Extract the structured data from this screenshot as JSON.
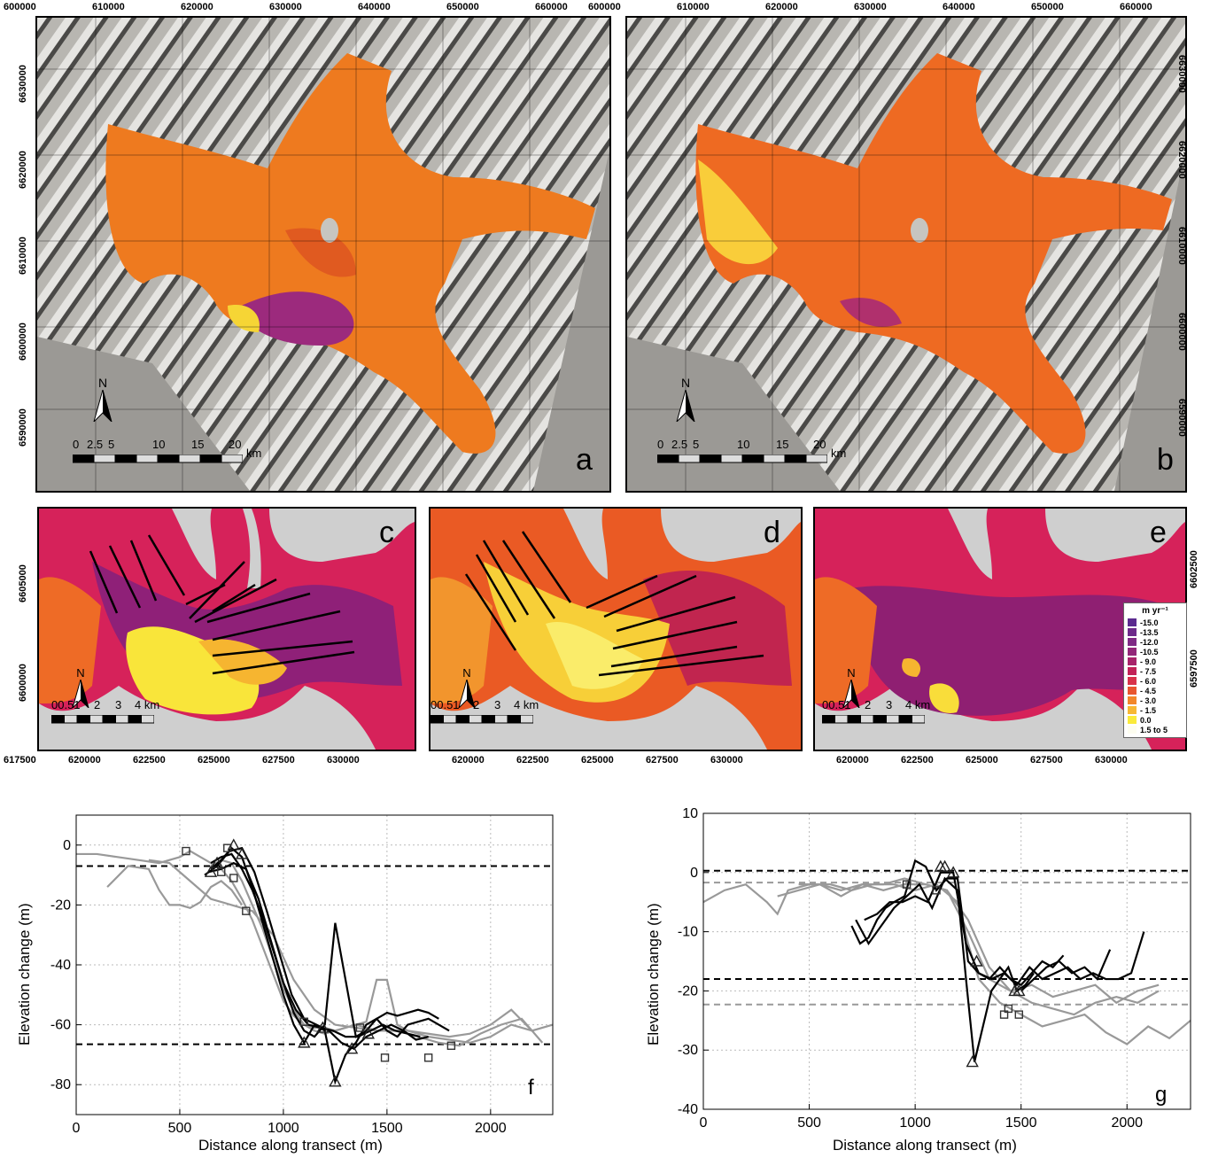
{
  "figure": {
    "panels": {
      "a": {
        "letter": "a"
      },
      "b": {
        "letter": "b"
      },
      "c": {
        "letter": "c"
      },
      "d": {
        "letter": "d"
      },
      "e": {
        "letter": "e"
      },
      "f": {
        "letter": "f"
      },
      "g": {
        "letter": "g"
      }
    },
    "top_easting_ticks": [
      "600000",
      "610000",
      "620000",
      "630000",
      "640000",
      "650000",
      "660000"
    ],
    "top_northing_ticks": [
      "6630000",
      "6620000",
      "6610000",
      "6600000",
      "6590000"
    ],
    "mid_easting_ticks_c": [
      "617500",
      "620000",
      "622500",
      "625000",
      "627500",
      "630000"
    ],
    "mid_easting_ticks_de": [
      "620000",
      "622500",
      "625000",
      "627500",
      "630000"
    ],
    "mid_northing_left": [
      "6605000",
      "6600000"
    ],
    "mid_northing_right": [
      "6602500",
      "6597500"
    ],
    "north_arrow": "N",
    "scale_large": {
      "labels": [
        "0",
        "2.5",
        "5",
        "10",
        "15",
        "20"
      ],
      "unit": "km"
    },
    "scale_small": {
      "labels": [
        "00.51",
        "2",
        "3",
        "4 km"
      ]
    },
    "legend": {
      "title": "m yr⁻¹",
      "entries": [
        {
          "label": "-15.0",
          "color": "#5b2a8f"
        },
        {
          "label": "-13.5",
          "color": "#6d2a8a"
        },
        {
          "label": "-12.0",
          "color": "#7f2a85"
        },
        {
          "label": "-10.5",
          "color": "#932779"
        },
        {
          "label": "- 9.0",
          "color": "#a8236a"
        },
        {
          "label": "- 7.5",
          "color": "#c22257"
        },
        {
          "label": "- 6.0",
          "color": "#d8324a"
        },
        {
          "label": "- 4.5",
          "color": "#e8562f"
        },
        {
          "label": "- 3.0",
          "color": "#f2872a"
        },
        {
          "label": "- 1.5",
          "color": "#f7b833"
        },
        {
          "label": "0.0",
          "color": "#faea3a"
        },
        {
          "label": "1.5 to 5",
          "color": "#fdfdf0"
        }
      ]
    }
  },
  "chart_data": [
    {
      "panel": "f",
      "type": "line",
      "xlabel": "Distance along transect (m)",
      "ylabel": "Elevation change (m)",
      "xlim": [
        0,
        2300
      ],
      "ylim": [
        -90,
        10
      ],
      "xticks": [
        0,
        500,
        1000,
        1500,
        2000
      ],
      "yticks": [
        0,
        -20,
        -40,
        -60,
        -80
      ],
      "grid": true,
      "reference_lines": [
        {
          "y": -7,
          "color": "#000000"
        },
        {
          "y": -66.5,
          "color": "#000000"
        }
      ],
      "series": [
        {
          "color": "#999999",
          "x": [
            0,
            100,
            200,
            300,
            400,
            500,
            550,
            600,
            650,
            700,
            750,
            800,
            850,
            900,
            950,
            1000,
            1050,
            1100,
            1150,
            1200,
            1250,
            1300,
            1350,
            1400,
            1450,
            1500,
            1600,
            1700,
            1800,
            1900,
            2000,
            2100,
            2200,
            2300
          ],
          "y": [
            -3,
            -3,
            -4,
            -5,
            -6,
            -4,
            -2,
            -4,
            -6,
            -8,
            -12,
            -18,
            -25,
            -34,
            -43,
            -52,
            -57,
            -60,
            -61,
            -61,
            -62,
            -61,
            -60,
            -61,
            -62,
            -62,
            -62,
            -63,
            -64,
            -63,
            -60,
            -55,
            -62,
            -60
          ]
        },
        {
          "color": "#999999",
          "x": [
            150,
            250,
            350,
            400,
            450,
            500,
            550,
            600,
            650,
            700,
            750,
            800
          ],
          "y": [
            -14,
            -7,
            -8,
            -15,
            -20,
            -20,
            -21,
            -19,
            -14,
            -12,
            -15,
            -20
          ]
        },
        {
          "color": "#999999",
          "x": [
            350,
            450,
            550,
            650,
            750,
            850,
            950,
            1050,
            1150,
            1250,
            1350,
            1450,
            1550,
            1650,
            1750,
            1850,
            1950,
            2050,
            2150,
            2250
          ],
          "y": [
            -5,
            -6,
            -12,
            -18,
            -20,
            -22,
            -30,
            -45,
            -55,
            -60,
            -61,
            -62,
            -62,
            -64,
            -66,
            -67,
            -63,
            -60,
            -58,
            -66
          ]
        },
        {
          "color": "#999999",
          "x": [
            650,
            700,
            750,
            800,
            850,
            900,
            950,
            1000,
            1050,
            1100,
            1150,
            1200,
            1250,
            1300,
            1350,
            1400,
            1450,
            1500,
            1550,
            1600,
            1700,
            1800,
            1900,
            2000,
            2100,
            2200
          ],
          "y": [
            -7,
            -5,
            -6,
            -12,
            -20,
            -28,
            -38,
            -48,
            -55,
            -60,
            -62,
            -63,
            -62,
            -61,
            -60,
            -59,
            -45,
            -45,
            -60,
            -62,
            -64,
            -65,
            -66,
            -64,
            -60,
            -62
          ]
        },
        {
          "color": "#000000",
          "x": [
            650,
            700,
            750,
            800,
            850,
            900,
            950,
            1000,
            1050,
            1100,
            1150,
            1200,
            1250,
            1300,
            1350,
            1400,
            1450,
            1500,
            1550,
            1600,
            1650,
            1700,
            1750
          ],
          "y": [
            -6,
            -4,
            -3,
            -8,
            -15,
            -24,
            -35,
            -46,
            -56,
            -62,
            -64,
            -60,
            -26,
            -45,
            -64,
            -62,
            -58,
            -56,
            -57,
            -56,
            -55,
            -56,
            -58
          ]
        },
        {
          "color": "#000000",
          "x": [
            650,
            700,
            750,
            800,
            850,
            900,
            950,
            1000,
            1050,
            1100,
            1150,
            1200,
            1250,
            1300,
            1350,
            1400,
            1450,
            1500,
            1550,
            1600,
            1700,
            1800
          ],
          "y": [
            -8,
            -5,
            -1,
            -4,
            -14,
            -26,
            -38,
            -50,
            -60,
            -66,
            -60,
            -62,
            -79,
            -70,
            -66,
            -60,
            -58,
            -62,
            -64,
            -60,
            -58,
            -62
          ]
        },
        {
          "color": "#000000",
          "x": [
            620,
            680,
            740,
            800,
            860,
            920,
            980,
            1040,
            1100,
            1160,
            1220,
            1280,
            1340,
            1400,
            1460,
            1520,
            1580,
            1640,
            1700
          ],
          "y": [
            -10,
            -7,
            -2,
            -1,
            -9,
            -22,
            -36,
            -50,
            -58,
            -60,
            -62,
            -66,
            -68,
            -64,
            -62,
            -60,
            -62,
            -65,
            -64
          ]
        },
        {
          "color": "#000000",
          "x": [
            640,
            700,
            760,
            820,
            880,
            940,
            1000,
            1060,
            1120,
            1180,
            1240,
            1300,
            1360,
            1420,
            1480,
            1540,
            1600,
            1660
          ],
          "y": [
            -9,
            -8,
            -6,
            -8,
            -18,
            -32,
            -46,
            -55,
            -60,
            -61,
            -62,
            -64,
            -64,
            -62,
            -60,
            -62,
            -63,
            -64
          ]
        }
      ],
      "markers": [
        {
          "shape": "square",
          "x": [
            530,
            700,
            730,
            760,
            820,
            1100,
            1370,
            1490,
            1700,
            1810
          ],
          "y": [
            -2,
            -9,
            -1,
            -11,
            -22,
            -59,
            -61,
            -71,
            -71,
            -67
          ]
        },
        {
          "shape": "triangle",
          "x": [
            650,
            680,
            760,
            800,
            1100,
            1250,
            1330,
            1410,
            1190
          ],
          "y": [
            -9,
            -6,
            0,
            -3,
            -66,
            -79,
            -68,
            -63,
            -61
          ]
        }
      ]
    },
    {
      "panel": "g",
      "type": "line",
      "xlabel": "Distance along transect (m)",
      "ylabel": "Elevation change (m)",
      "xlim": [
        0,
        2300
      ],
      "ylim": [
        -40,
        10
      ],
      "xticks": [
        0,
        500,
        1000,
        1500,
        2000
      ],
      "yticks": [
        10,
        0,
        -10,
        -20,
        -30,
        -40
      ],
      "grid": true,
      "reference_lines": [
        {
          "y": 0.3,
          "color": "#000000"
        },
        {
          "y": -18,
          "color": "#000000"
        },
        {
          "y": -1.7,
          "color": "#999999"
        },
        {
          "y": -22.3,
          "color": "#999999"
        }
      ],
      "series": [
        {
          "color": "#999999",
          "x": [
            0,
            100,
            200,
            300,
            350,
            400,
            500,
            600,
            700,
            800,
            900,
            1000,
            1100,
            1200,
            1250,
            1300,
            1400,
            1500,
            1600,
            1700,
            1800,
            1900,
            2000,
            2100,
            2200,
            2300
          ],
          "y": [
            -5,
            -3,
            -2,
            -5,
            -7,
            -3,
            -2,
            -2,
            -3,
            -2,
            -2,
            -3,
            -2,
            -5,
            -12,
            -18,
            -22,
            -24,
            -26,
            -25,
            -24,
            -27,
            -29,
            -26,
            -28,
            -25
          ]
        },
        {
          "color": "#999999",
          "x": [
            350,
            450,
            550,
            650,
            750,
            850,
            950,
            1050,
            1150,
            1250,
            1350,
            1450,
            1550,
            1650,
            1750,
            1850,
            1950,
            2050,
            2150
          ],
          "y": [
            -4,
            -3,
            -2,
            -4,
            -2,
            -3,
            -2,
            -2,
            -3,
            -8,
            -16,
            -20,
            -22,
            -23,
            -24,
            -22,
            -21,
            -22,
            -20
          ]
        },
        {
          "color": "#999999",
          "x": [
            450,
            550,
            650,
            750,
            850,
            950,
            1050,
            1150,
            1250,
            1350,
            1450,
            1550,
            1650,
            1750,
            1850,
            1950,
            2050,
            2150
          ],
          "y": [
            -2,
            -2,
            -3,
            -2,
            -2,
            -1,
            -2,
            -3,
            -10,
            -18,
            -20,
            -19,
            -21,
            -20,
            -19,
            -22,
            -20,
            -19
          ]
        },
        {
          "color": "#000000",
          "x": [
            700,
            740,
            780,
            820,
            860,
            900,
            950,
            1000,
            1050,
            1100,
            1150,
            1200,
            1250,
            1300,
            1350,
            1400,
            1450,
            1500,
            1550,
            1600,
            1650,
            1700
          ],
          "y": [
            -9,
            -12,
            -11,
            -8,
            -6,
            -5,
            -4,
            2,
            1,
            -3,
            -1,
            -1,
            -15,
            -17,
            -18,
            -16,
            -18,
            -19,
            -17,
            -15,
            -16,
            -14
          ]
        },
        {
          "color": "#000000",
          "x": [
            720,
            780,
            840,
            900,
            960,
            1020,
            1080,
            1140,
            1200,
            1240,
            1280,
            1320,
            1360,
            1400,
            1440,
            1480,
            1520,
            1560
          ],
          "y": [
            -8,
            -12,
            -9,
            -6,
            -4,
            -2,
            -6,
            -1,
            -3,
            -18,
            -32,
            -26,
            -20,
            -18,
            -16,
            -20,
            -19,
            -17
          ]
        },
        {
          "color": "#000000",
          "x": [
            760,
            820,
            880,
            940,
            1000,
            1060,
            1120,
            1180,
            1240,
            1300,
            1360,
            1420,
            1480,
            1540,
            1600,
            1660,
            1720,
            1780,
            1840,
            1900,
            1960,
            2020,
            2080
          ],
          "y": [
            -8,
            -7,
            -5,
            -5,
            -4,
            -5,
            0,
            0,
            -12,
            -17,
            -18,
            -17,
            -19,
            -16,
            -18,
            -17,
            -16,
            -18,
            -17,
            -18,
            -18,
            -17,
            -10
          ]
        },
        {
          "color": "#000000",
          "x": [
            1500,
            1560,
            1620,
            1680,
            1740,
            1800,
            1860,
            1920
          ],
          "y": [
            -20,
            -18,
            -16,
            -15,
            -17,
            -16,
            -18,
            -13
          ]
        }
      ],
      "markers": [
        {
          "shape": "square",
          "x": [
            960,
            1100,
            1420,
            1440,
            1490
          ],
          "y": [
            -2,
            -3,
            -24,
            -23,
            -24
          ]
        },
        {
          "shape": "triangle",
          "x": [
            1120,
            1140,
            1180,
            1290,
            1270,
            1470,
            1490
          ],
          "y": [
            1,
            1,
            0,
            -15,
            -32,
            -20,
            -20
          ]
        }
      ]
    }
  ]
}
